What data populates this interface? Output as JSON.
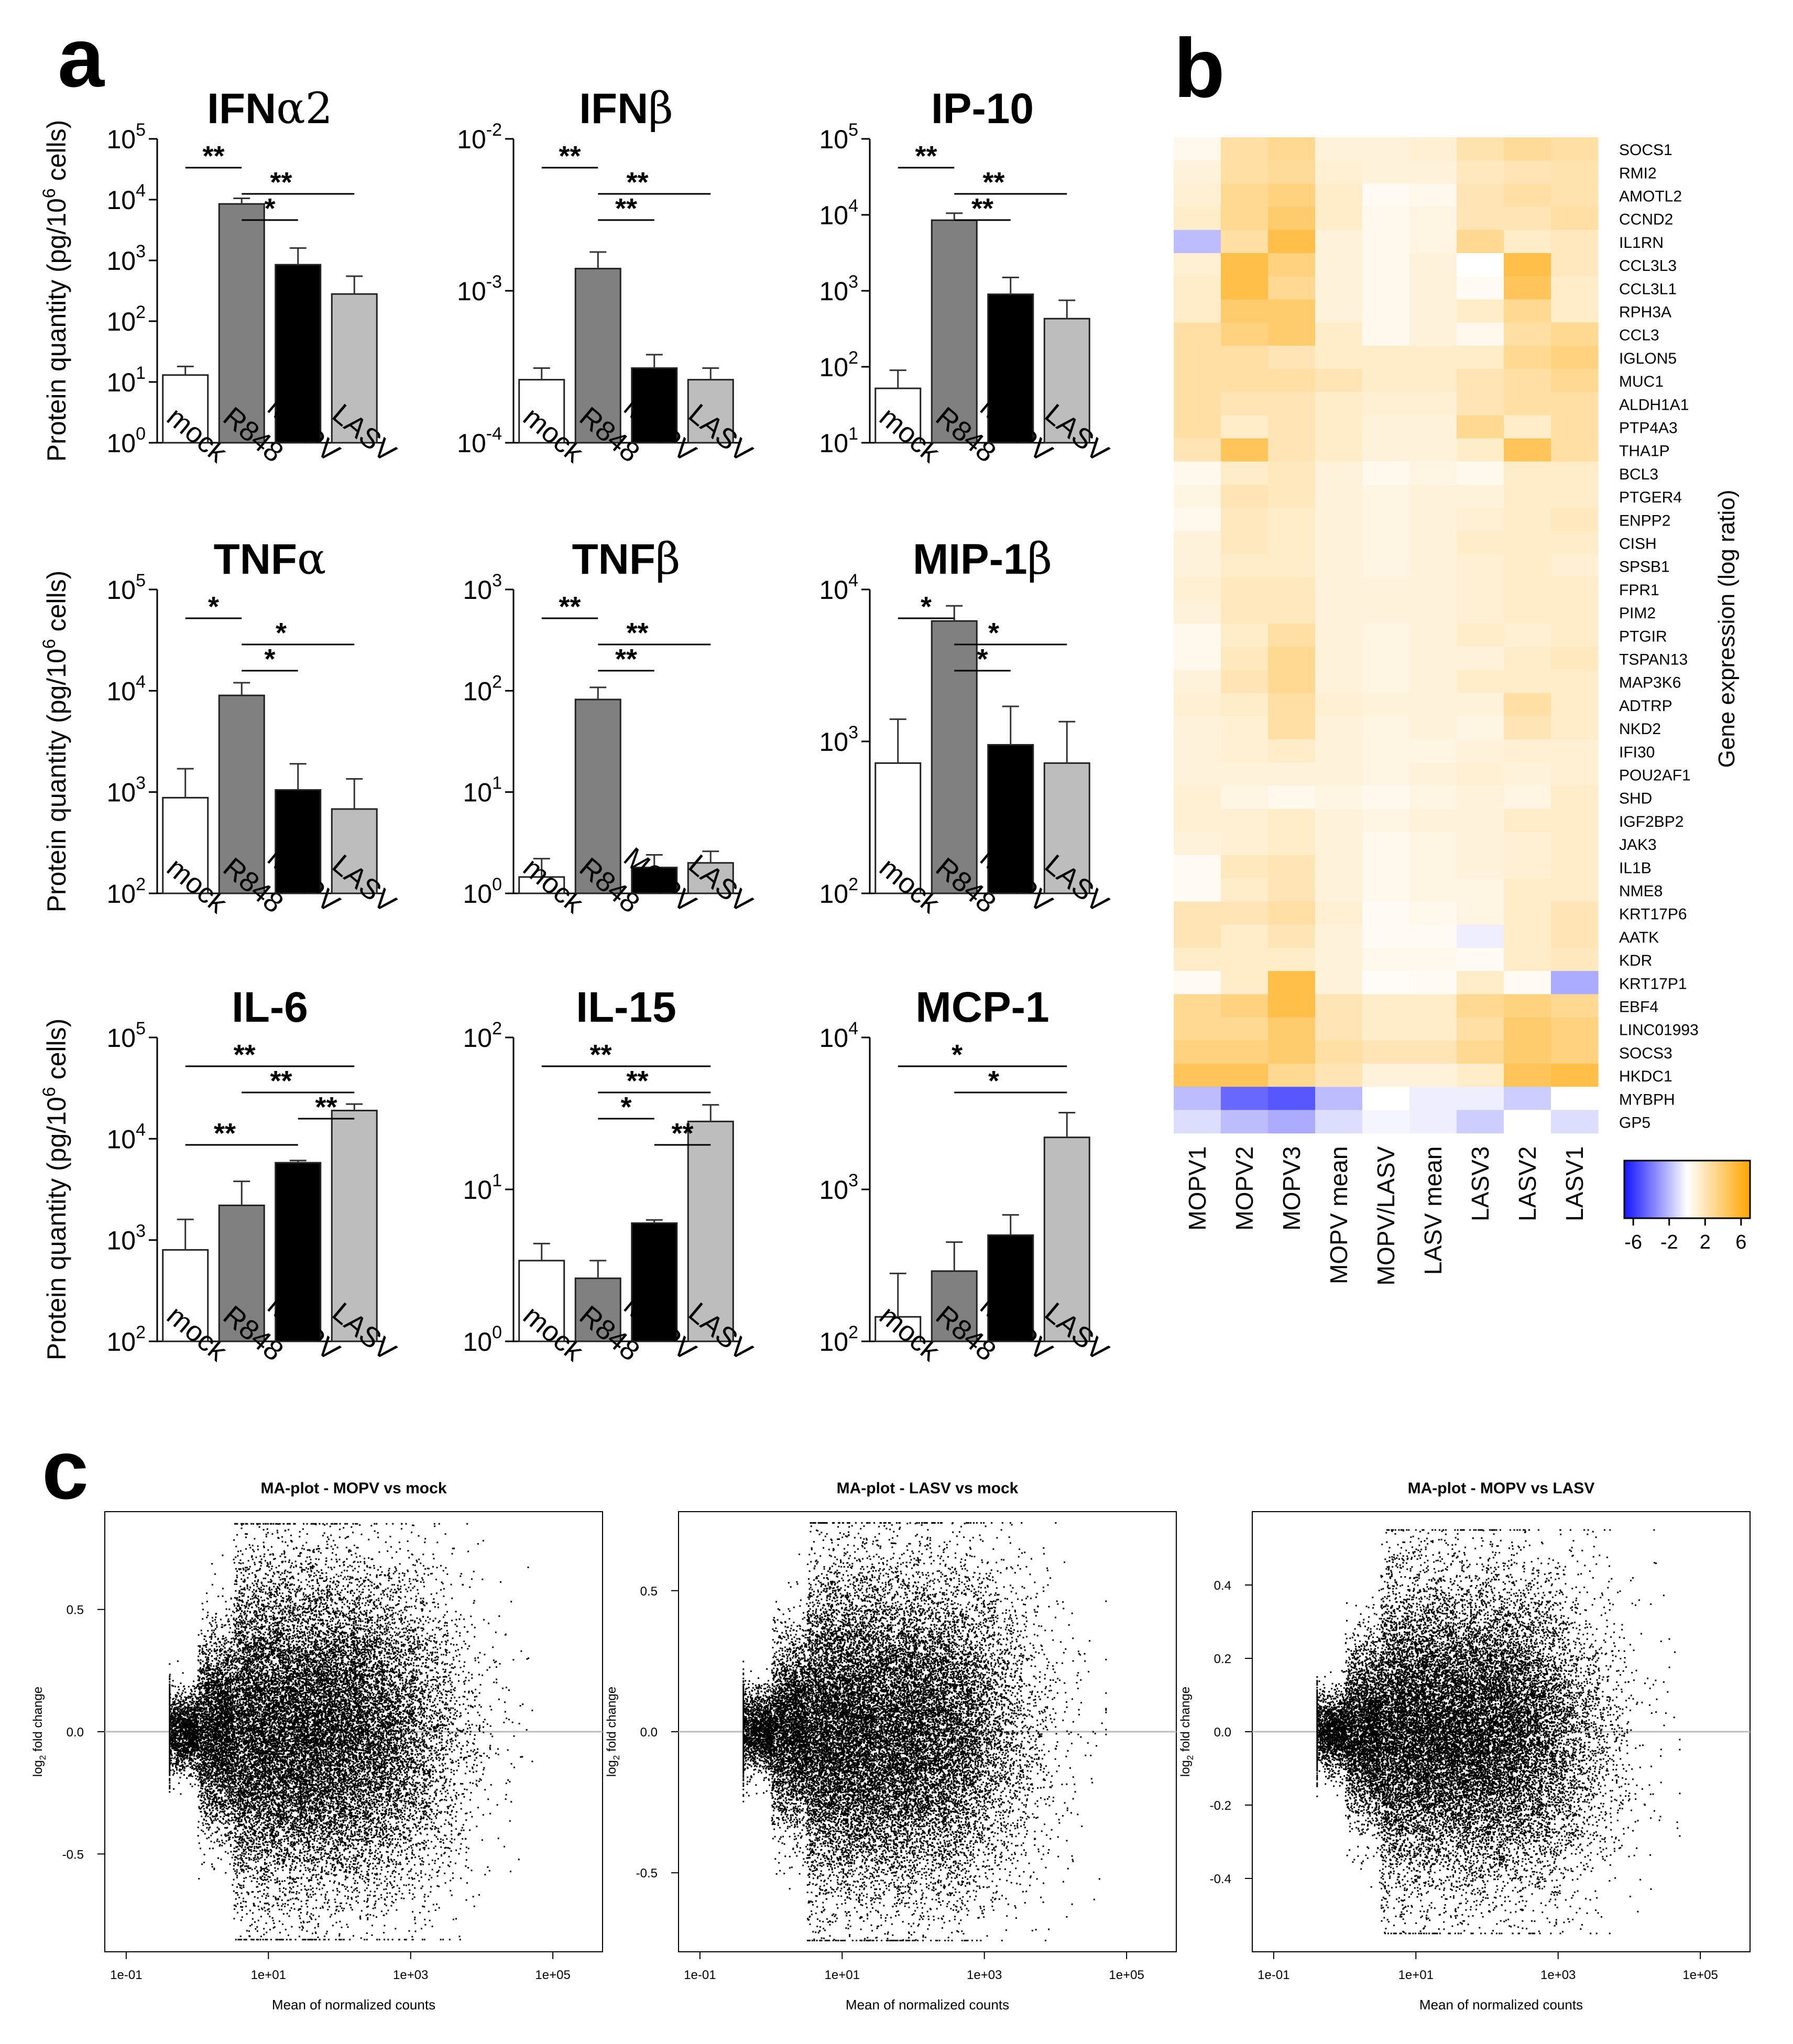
{
  "figure": {
    "panels": [
      "a",
      "b",
      "c"
    ]
  },
  "chart_data": [
    {
      "type": "bar",
      "panel": "a",
      "title": "IFNα2",
      "title_base": "IFN",
      "title_greek": "α2",
      "categories": [
        "mock",
        "R848",
        "MOPV",
        "LASV"
      ],
      "values": [
        13,
        8500,
        850,
        280
      ],
      "error_upper": [
        18,
        10500,
        1600,
        550
      ],
      "bar_colors": [
        "#ffffff",
        "#808080",
        "#000000",
        "#bdbdbd"
      ],
      "yscale": "log",
      "ylim": [
        1,
        100000
      ],
      "ytick_base": "10",
      "ytick_exponents": [
        "0",
        "1",
        "2",
        "3",
        "4",
        "5"
      ],
      "ylabel": "Protein quantity (pg/10",
      "ylabel_sup": "6",
      "ylabel_tail": " cells)",
      "significance": [
        {
          "a": 0,
          "b": 1,
          "label": "**"
        },
        {
          "a": 1,
          "b": 3,
          "label": "**"
        },
        {
          "a": 1,
          "b": 2,
          "label": "*"
        }
      ]
    },
    {
      "type": "bar",
      "panel": "a",
      "title": "IFNβ",
      "title_base": "IFN",
      "title_greek": "β",
      "categories": [
        "mock",
        "R848",
        "MOPV",
        "LASV"
      ],
      "values": [
        0.00026,
        0.0014,
        0.00031,
        0.00026
      ],
      "error_upper": [
        0.00031,
        0.0018,
        0.00038,
        0.00031
      ],
      "bar_colors": [
        "#ffffff",
        "#808080",
        "#000000",
        "#bdbdbd"
      ],
      "yscale": "log",
      "ylim": [
        0.0001,
        0.01
      ],
      "ytick_base": "10",
      "ytick_exponents": [
        "-4",
        "-3",
        "-2"
      ],
      "ylabel": "",
      "ylabel_sup": "",
      "ylabel_tail": "",
      "significance": [
        {
          "a": 0,
          "b": 1,
          "label": "**"
        },
        {
          "a": 1,
          "b": 3,
          "label": "**"
        },
        {
          "a": 1,
          "b": 2,
          "label": "**"
        }
      ]
    },
    {
      "type": "bar",
      "panel": "a",
      "title": "IP-10",
      "title_base": "IP-10",
      "title_greek": "",
      "categories": [
        "mock",
        "R848",
        "MOPV",
        "LASV"
      ],
      "values": [
        52,
        8500,
        900,
        430
      ],
      "error_upper": [
        90,
        10500,
        1500,
        750
      ],
      "bar_colors": [
        "#ffffff",
        "#808080",
        "#000000",
        "#bdbdbd"
      ],
      "yscale": "log",
      "ylim": [
        10,
        100000
      ],
      "ytick_base": "10",
      "ytick_exponents": [
        "1",
        "2",
        "3",
        "4",
        "5"
      ],
      "ylabel": "",
      "ylabel_sup": "",
      "ylabel_tail": "",
      "significance": [
        {
          "a": 0,
          "b": 1,
          "label": "**"
        },
        {
          "a": 1,
          "b": 3,
          "label": "**"
        },
        {
          "a": 1,
          "b": 2,
          "label": "**"
        }
      ]
    },
    {
      "type": "bar",
      "panel": "a",
      "title": "TNFα",
      "title_base": "TNF",
      "title_greek": "α",
      "categories": [
        "mock",
        "R848",
        "MOPV",
        "LASV"
      ],
      "values": [
        880,
        9000,
        1050,
        680
      ],
      "error_upper": [
        1700,
        12000,
        1900,
        1350
      ],
      "bar_colors": [
        "#ffffff",
        "#808080",
        "#000000",
        "#bdbdbd"
      ],
      "yscale": "log",
      "ylim": [
        100,
        100000
      ],
      "ytick_base": "10",
      "ytick_exponents": [
        "2",
        "3",
        "4",
        "5"
      ],
      "ylabel": "Protein quantity (pg/10",
      "ylabel_sup": "6",
      "ylabel_tail": " cells)",
      "significance": [
        {
          "a": 0,
          "b": 1,
          "label": "*"
        },
        {
          "a": 1,
          "b": 3,
          "label": "*"
        },
        {
          "a": 1,
          "b": 2,
          "label": "*"
        }
      ]
    },
    {
      "type": "bar",
      "panel": "a",
      "title": "TNFβ",
      "title_base": "TNF",
      "title_greek": "β",
      "categories": [
        "mock",
        "R848",
        "MOPV",
        "LASV"
      ],
      "values": [
        1.45,
        82,
        1.8,
        2.0
      ],
      "error_upper": [
        2.2,
        108,
        2.4,
        2.6
      ],
      "bar_colors": [
        "#ffffff",
        "#808080",
        "#000000",
        "#bdbdbd"
      ],
      "yscale": "log",
      "ylim": [
        1,
        1000
      ],
      "ytick_base": "10",
      "ytick_exponents": [
        "0",
        "1",
        "2",
        "3"
      ],
      "ylabel": "",
      "ylabel_sup": "",
      "ylabel_tail": "",
      "significance": [
        {
          "a": 0,
          "b": 1,
          "label": "**"
        },
        {
          "a": 1,
          "b": 3,
          "label": "**"
        },
        {
          "a": 1,
          "b": 2,
          "label": "**"
        }
      ]
    },
    {
      "type": "bar",
      "panel": "a",
      "title": "MIP-1β",
      "title_base": "MIP-1",
      "title_greek": "β",
      "categories": [
        "mock",
        "R848",
        "MOPV",
        "LASV"
      ],
      "values": [
        720,
        6200,
        950,
        720
      ],
      "error_upper": [
        1400,
        7800,
        1700,
        1350
      ],
      "bar_colors": [
        "#ffffff",
        "#808080",
        "#000000",
        "#bdbdbd"
      ],
      "yscale": "log",
      "ylim": [
        100,
        10000
      ],
      "ytick_base": "10",
      "ytick_exponents": [
        "2",
        "3",
        "4"
      ],
      "ylabel": "",
      "ylabel_sup": "",
      "ylabel_tail": "",
      "significance": [
        {
          "a": 0,
          "b": 1,
          "label": "*"
        },
        {
          "a": 1,
          "b": 3,
          "label": "*"
        },
        {
          "a": 1,
          "b": 2,
          "label": "*"
        }
      ]
    },
    {
      "type": "bar",
      "panel": "a",
      "title": "IL-6",
      "title_base": "IL-6",
      "title_greek": "",
      "categories": [
        "mock",
        "R848",
        "MOPV",
        "LASV"
      ],
      "values": [
        800,
        2200,
        5800,
        19000
      ],
      "error_upper": [
        1600,
        3800,
        6100,
        22000
      ],
      "bar_colors": [
        "#ffffff",
        "#808080",
        "#000000",
        "#bdbdbd"
      ],
      "yscale": "log",
      "ylim": [
        100,
        100000
      ],
      "ytick_base": "10",
      "ytick_exponents": [
        "2",
        "3",
        "4",
        "5"
      ],
      "ylabel": "Protein quantity (pg/10",
      "ylabel_sup": "6",
      "ylabel_tail": " cells)",
      "significance": [
        {
          "a": 0,
          "b": 3,
          "label": "**"
        },
        {
          "a": 1,
          "b": 3,
          "label": "**"
        },
        {
          "a": 2,
          "b": 3,
          "label": "**"
        },
        {
          "a": 0,
          "b": 2,
          "label": "**"
        }
      ]
    },
    {
      "type": "bar",
      "panel": "a",
      "title": "IL-15",
      "title_base": "IL-15",
      "title_greek": "",
      "categories": [
        "mock",
        "R848",
        "MOPV",
        "LASV"
      ],
      "values": [
        3.4,
        2.6,
        6.0,
        28
      ],
      "error_upper": [
        4.4,
        3.4,
        6.3,
        36
      ],
      "bar_colors": [
        "#ffffff",
        "#808080",
        "#000000",
        "#bdbdbd"
      ],
      "yscale": "log",
      "ylim": [
        1,
        100
      ],
      "ytick_base": "10",
      "ytick_exponents": [
        "0",
        "1",
        "2"
      ],
      "ylabel": "",
      "ylabel_sup": "",
      "ylabel_tail": "",
      "significance": [
        {
          "a": 0,
          "b": 3,
          "label": "**"
        },
        {
          "a": 1,
          "b": 3,
          "label": "**"
        },
        {
          "a": 1,
          "b": 2,
          "label": "*"
        },
        {
          "a": 2,
          "b": 3,
          "label": "**"
        }
      ]
    },
    {
      "type": "bar",
      "panel": "a",
      "title": "MCP-1",
      "title_base": "MCP-1",
      "title_greek": "",
      "categories": [
        "mock",
        "R848",
        "MOPV",
        "LASV"
      ],
      "values": [
        145,
        290,
        500,
        2200
      ],
      "error_upper": [
        280,
        450,
        680,
        3200
      ],
      "bar_colors": [
        "#ffffff",
        "#808080",
        "#000000",
        "#bdbdbd"
      ],
      "yscale": "log",
      "ylim": [
        100,
        10000
      ],
      "ytick_base": "10",
      "ytick_exponents": [
        "2",
        "3",
        "4"
      ],
      "ylabel": "",
      "ylabel_sup": "",
      "ylabel_tail": "",
      "significance": [
        {
          "a": 0,
          "b": 3,
          "label": "*"
        },
        {
          "a": 1,
          "b": 3,
          "label": "*"
        }
      ]
    },
    {
      "type": "heatmap",
      "panel": "b",
      "columns": [
        "MOPV1",
        "MOPV2",
        "MOPV3",
        "MOPV mean",
        "MOPV/LASV",
        "LASV mean",
        "LASV3",
        "LASV2",
        "LASV1"
      ],
      "rows": [
        "SOCS1",
        "RMI2",
        "AMOTL2",
        "CCND2",
        "IL1RN",
        "CCL3L3",
        "CCL3L1",
        "RPH3A",
        "CCL3",
        "IGLON5",
        "MUC1",
        "ALDH1A1",
        "PTP4A3",
        "THA1P",
        "BCL3",
        "PTGER4",
        "ENPP2",
        "CISH",
        "SPSB1",
        "FPR1",
        "PIM2",
        "PTGIR",
        "TSPAN13",
        "MAP3K6",
        "ADTRP",
        "NKD2",
        "IFI30",
        "POU2AF1",
        "SHD",
        "IGF2BP2",
        "JAK3",
        "IL1B",
        "NME8",
        "KRT17P6",
        "AATK",
        "KDR",
        "KRT17P1",
        "EBF4",
        "LINC01993",
        "SOCS3",
        "HKDC1",
        "MYBPH",
        "GP5"
      ],
      "values": [
        [
          0.5,
          2.5,
          3.0,
          1.0,
          1.0,
          1.2,
          2.2,
          2.8,
          2.5
        ],
        [
          1.0,
          2.5,
          2.8,
          1.2,
          1.0,
          1.0,
          1.8,
          2.0,
          2.2
        ],
        [
          1.2,
          3.0,
          3.5,
          1.5,
          0.3,
          0.5,
          2.0,
          2.5,
          2.2
        ],
        [
          1.5,
          3.0,
          4.0,
          1.5,
          0.5,
          0.8,
          2.0,
          2.0,
          2.5
        ],
        [
          -2.0,
          2.5,
          5.0,
          1.0,
          0.5,
          0.8,
          3.0,
          1.5,
          1.8
        ],
        [
          1.2,
          5.0,
          3.5,
          1.0,
          0.5,
          1.0,
          0.0,
          5.0,
          1.8
        ],
        [
          1.5,
          5.0,
          3.0,
          1.0,
          0.5,
          1.0,
          0.3,
          4.5,
          1.5
        ],
        [
          1.5,
          4.0,
          4.0,
          1.0,
          0.5,
          1.0,
          1.5,
          3.0,
          1.5
        ],
        [
          2.5,
          3.5,
          4.0,
          1.5,
          0.5,
          1.0,
          0.5,
          2.5,
          3.0
        ],
        [
          2.5,
          2.5,
          2.0,
          1.5,
          1.5,
          1.5,
          1.5,
          3.0,
          3.5
        ],
        [
          2.5,
          2.5,
          2.5,
          2.0,
          1.5,
          1.5,
          2.0,
          2.5,
          3.0
        ],
        [
          2.5,
          2.0,
          2.0,
          1.5,
          1.2,
          1.2,
          2.0,
          2.5,
          2.5
        ],
        [
          2.5,
          1.5,
          2.0,
          1.5,
          1.0,
          1.0,
          3.0,
          1.5,
          2.5
        ],
        [
          2.0,
          4.5,
          2.0,
          1.5,
          1.0,
          1.0,
          1.5,
          4.5,
          2.5
        ],
        [
          0.5,
          1.5,
          1.8,
          1.0,
          0.5,
          0.8,
          0.5,
          1.5,
          1.5
        ],
        [
          0.8,
          2.0,
          1.8,
          1.0,
          0.8,
          1.0,
          1.0,
          1.5,
          1.5
        ],
        [
          0.5,
          1.8,
          1.5,
          1.0,
          0.8,
          1.0,
          1.2,
          1.5,
          1.8
        ],
        [
          1.0,
          1.8,
          1.5,
          1.0,
          0.8,
          1.0,
          1.5,
          1.5,
          1.5
        ],
        [
          1.0,
          1.5,
          1.5,
          1.0,
          0.8,
          1.0,
          1.2,
          1.5,
          1.2
        ],
        [
          1.2,
          1.8,
          1.8,
          1.0,
          1.0,
          1.0,
          1.2,
          1.5,
          1.5
        ],
        [
          1.0,
          1.8,
          1.8,
          1.0,
          1.0,
          1.0,
          1.2,
          1.5,
          1.5
        ],
        [
          0.5,
          1.5,
          2.5,
          1.0,
          0.8,
          1.0,
          1.5,
          1.2,
          1.5
        ],
        [
          0.5,
          1.8,
          3.0,
          1.0,
          0.8,
          1.0,
          1.0,
          1.5,
          1.8
        ],
        [
          1.0,
          2.0,
          3.0,
          1.0,
          0.8,
          1.0,
          1.5,
          1.5,
          1.5
        ],
        [
          1.2,
          1.5,
          2.5,
          1.2,
          1.0,
          1.0,
          1.0,
          2.5,
          1.5
        ],
        [
          1.0,
          1.2,
          2.5,
          1.0,
          0.8,
          1.0,
          0.8,
          2.0,
          1.5
        ],
        [
          1.0,
          1.2,
          1.5,
          1.0,
          0.8,
          0.8,
          1.0,
          1.2,
          1.2
        ],
        [
          1.0,
          1.0,
          1.0,
          1.0,
          0.8,
          1.0,
          1.2,
          1.0,
          1.2
        ],
        [
          1.2,
          0.8,
          0.5,
          0.8,
          0.5,
          0.8,
          1.0,
          0.8,
          1.5
        ],
        [
          1.2,
          1.2,
          1.5,
          1.0,
          0.8,
          1.0,
          1.0,
          1.5,
          1.5
        ],
        [
          1.0,
          1.2,
          1.5,
          1.0,
          0.5,
          0.8,
          1.0,
          1.2,
          1.5
        ],
        [
          0.3,
          1.8,
          2.0,
          1.0,
          0.5,
          0.8,
          1.0,
          1.2,
          1.5
        ],
        [
          0.3,
          1.5,
          2.0,
          1.0,
          0.5,
          0.8,
          0.8,
          1.5,
          1.5
        ],
        [
          2.0,
          2.0,
          2.5,
          1.2,
          0.3,
          0.5,
          0.8,
          1.5,
          2.0
        ],
        [
          2.0,
          1.5,
          2.0,
          1.0,
          0.3,
          0.3,
          -0.5,
          1.5,
          2.0
        ],
        [
          1.5,
          1.5,
          1.5,
          1.0,
          0.5,
          0.5,
          0.3,
          1.5,
          1.8
        ],
        [
          0.3,
          1.5,
          5.0,
          1.0,
          0.2,
          0.3,
          1.5,
          0.3,
          -2.5
        ],
        [
          3.0,
          3.5,
          5.0,
          2.0,
          1.5,
          1.5,
          3.0,
          3.5,
          3.0
        ],
        [
          3.0,
          3.0,
          4.0,
          2.0,
          1.5,
          1.5,
          2.5,
          4.0,
          3.5
        ],
        [
          3.5,
          3.5,
          4.0,
          2.5,
          2.0,
          2.0,
          3.0,
          4.0,
          3.5
        ],
        [
          4.5,
          4.5,
          3.0,
          2.0,
          1.0,
          1.0,
          1.5,
          4.5,
          5.0
        ],
        [
          -2.0,
          -4.5,
          -5.0,
          -2.0,
          0.0,
          -0.5,
          -0.5,
          -1.5,
          0.0
        ],
        [
          -1.0,
          -2.0,
          -2.5,
          -1.0,
          -0.3,
          -0.5,
          -1.5,
          0.0,
          -1.0
        ]
      ],
      "colorbar": {
        "label": "Gene expression (log ratio)",
        "ticks": [
          "-6",
          "-2",
          "2",
          "6"
        ],
        "tick_values": [
          -6,
          -2,
          2,
          6
        ],
        "range": [
          -7,
          7
        ]
      }
    },
    {
      "type": "scatter",
      "panel": "c",
      "title": "MA-plot - MOPV vs mock",
      "xlabel": "Mean of normalized counts",
      "ylabel_main": "log",
      "ylabel_sub": "2",
      "ylabel_tail": " fold change",
      "xscale": "log",
      "xlim": [
        0.05,
        500000
      ],
      "ylim": [
        -0.9,
        0.9
      ],
      "cap": 0.85,
      "xtick_values": [
        0.1,
        10,
        1000,
        100000
      ],
      "xtick_labels": [
        "1e-01",
        "1e+01",
        "1e+03",
        "1e+05"
      ],
      "ytick_values": [
        -0.5,
        0.0,
        0.5
      ],
      "ytick_labels": [
        "-0.5",
        "0.0",
        "0.5"
      ],
      "spread": 0.32
    },
    {
      "type": "scatter",
      "panel": "c",
      "title": "MA-plot - LASV vs mock",
      "xlabel": "Mean of normalized counts",
      "ylabel_main": "log",
      "ylabel_sub": "2",
      "ylabel_tail": " fold change",
      "xscale": "log",
      "xlim": [
        0.05,
        500000
      ],
      "ylim": [
        -0.78,
        0.78
      ],
      "cap": 0.74,
      "xtick_values": [
        0.1,
        10,
        1000,
        100000
      ],
      "xtick_labels": [
        "1e-01",
        "1e+01",
        "1e+03",
        "1e+05"
      ],
      "ytick_values": [
        -0.5,
        0.0,
        0.5
      ],
      "ytick_labels": [
        "-0.5",
        "0.0",
        "0.5"
      ],
      "spread": 0.28
    },
    {
      "type": "scatter",
      "panel": "c",
      "title": "MA-plot - MOPV vs LASV",
      "xlabel": "Mean of normalized counts",
      "ylabel_main": "log",
      "ylabel_sub": "2",
      "ylabel_tail": " fold change",
      "xscale": "log",
      "xlim": [
        0.05,
        500000
      ],
      "ylim": [
        -0.6,
        0.6
      ],
      "cap": 0.55,
      "xtick_values": [
        0.1,
        10,
        1000,
        100000
      ],
      "xtick_labels": [
        "1e-01",
        "1e+01",
        "1e+03",
        "1e+05"
      ],
      "ytick_values": [
        -0.4,
        -0.2,
        0.0,
        0.2,
        0.4
      ],
      "ytick_labels": [
        "-0.4",
        "-0.2",
        "0.0",
        "0.2",
        "0.4"
      ],
      "spread": 0.2
    }
  ]
}
